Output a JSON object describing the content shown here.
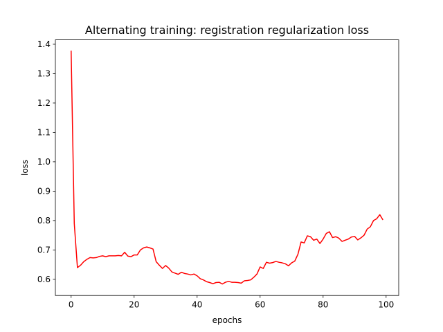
{
  "chart_data": {
    "type": "line",
    "title": "Alternating training: registration regularization loss",
    "xlabel": "epochs",
    "ylabel": "loss",
    "xlim": [
      -5,
      104
    ],
    "ylim": [
      0.545,
      1.415
    ],
    "xticks": [
      0,
      20,
      40,
      60,
      80,
      100
    ],
    "yticks": [
      0.6,
      0.7,
      0.8,
      0.9,
      1.0,
      1.1,
      1.2,
      1.3,
      1.4
    ],
    "xtick_labels": [
      "0",
      "20",
      "40",
      "60",
      "80",
      "100"
    ],
    "ytick_labels": [
      "0.6",
      "0.7",
      "0.8",
      "0.9",
      "1.0",
      "1.1",
      "1.2",
      "1.3",
      "1.4"
    ],
    "grid": false,
    "line_color": "#ff0000",
    "series": [
      {
        "x": [
          0,
          1,
          2,
          3,
          4,
          5,
          6,
          7,
          8,
          9,
          10,
          11,
          12,
          13,
          14,
          15,
          16,
          17,
          18,
          19,
          20,
          21,
          22,
          23,
          24,
          25,
          26,
          27,
          28,
          29,
          30,
          31,
          32,
          33,
          34,
          35,
          36,
          37,
          38,
          39,
          40,
          41,
          42,
          43,
          44,
          45,
          46,
          47,
          48,
          49,
          50,
          51,
          52,
          53,
          54,
          55,
          56,
          57,
          58,
          59,
          60,
          61,
          62,
          63,
          64,
          65,
          66,
          67,
          68,
          69,
          70,
          71,
          72,
          73,
          74,
          75,
          76,
          77,
          78,
          79,
          80,
          81,
          82,
          83,
          84,
          85,
          86,
          87,
          88,
          89,
          90,
          91,
          92,
          93,
          94,
          95,
          96,
          97,
          98,
          99
        ],
        "values": [
          1.378,
          0.79,
          0.64,
          0.648,
          0.66,
          0.668,
          0.674,
          0.673,
          0.674,
          0.678,
          0.68,
          0.677,
          0.68,
          0.68,
          0.68,
          0.681,
          0.68,
          0.692,
          0.679,
          0.677,
          0.683,
          0.683,
          0.7,
          0.707,
          0.71,
          0.707,
          0.703,
          0.66,
          0.648,
          0.637,
          0.647,
          0.638,
          0.625,
          0.621,
          0.617,
          0.624,
          0.62,
          0.618,
          0.615,
          0.618,
          0.612,
          0.602,
          0.598,
          0.592,
          0.589,
          0.585,
          0.589,
          0.59,
          0.584,
          0.59,
          0.593,
          0.59,
          0.59,
          0.589,
          0.587,
          0.595,
          0.596,
          0.598,
          0.607,
          0.618,
          0.642,
          0.637,
          0.658,
          0.655,
          0.657,
          0.661,
          0.658,
          0.656,
          0.653,
          0.646,
          0.656,
          0.662,
          0.685,
          0.727,
          0.724,
          0.748,
          0.745,
          0.733,
          0.737,
          0.722,
          0.737,
          0.756,
          0.762,
          0.742,
          0.745,
          0.74,
          0.729,
          0.733,
          0.737,
          0.744,
          0.746,
          0.734,
          0.741,
          0.75,
          0.771,
          0.779,
          0.8,
          0.806,
          0.82,
          0.802
        ]
      }
    ]
  }
}
